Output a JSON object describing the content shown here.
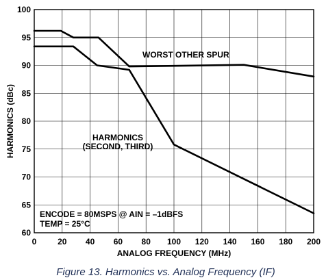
{
  "chart_data": {
    "type": "line",
    "xlabel": "ANALOG FREQUENCY (MHz)",
    "ylabel": "HARMONICS (dBc)",
    "xlim": [
      0,
      200
    ],
    "ylim": [
      60,
      100
    ],
    "xticks": [
      0,
      20,
      40,
      60,
      80,
      100,
      120,
      140,
      160,
      180,
      200
    ],
    "yticks": [
      60,
      65,
      70,
      75,
      80,
      85,
      90,
      95,
      100
    ],
    "grid": true,
    "series": [
      {
        "name": "WORST OTHER SPUR",
        "x": [
          0,
          19,
          28,
          46,
          68,
          150,
          200
        ],
        "y": [
          96.2,
          96.2,
          95,
          95,
          89.8,
          90.1,
          88
        ]
      },
      {
        "name": "HARMONICS (SECOND, THIRD)",
        "x": [
          0,
          28,
          45,
          68,
          100,
          200
        ],
        "y": [
          93.4,
          93.4,
          90,
          89.2,
          75.8,
          63.5
        ]
      }
    ],
    "annotations": [
      "ENCODE = 80MSPS @ AIN = –1dBFS",
      "TEMP = 25°C"
    ],
    "caption": "Figure 13. Harmonics vs. Analog Frequency (IF)"
  }
}
